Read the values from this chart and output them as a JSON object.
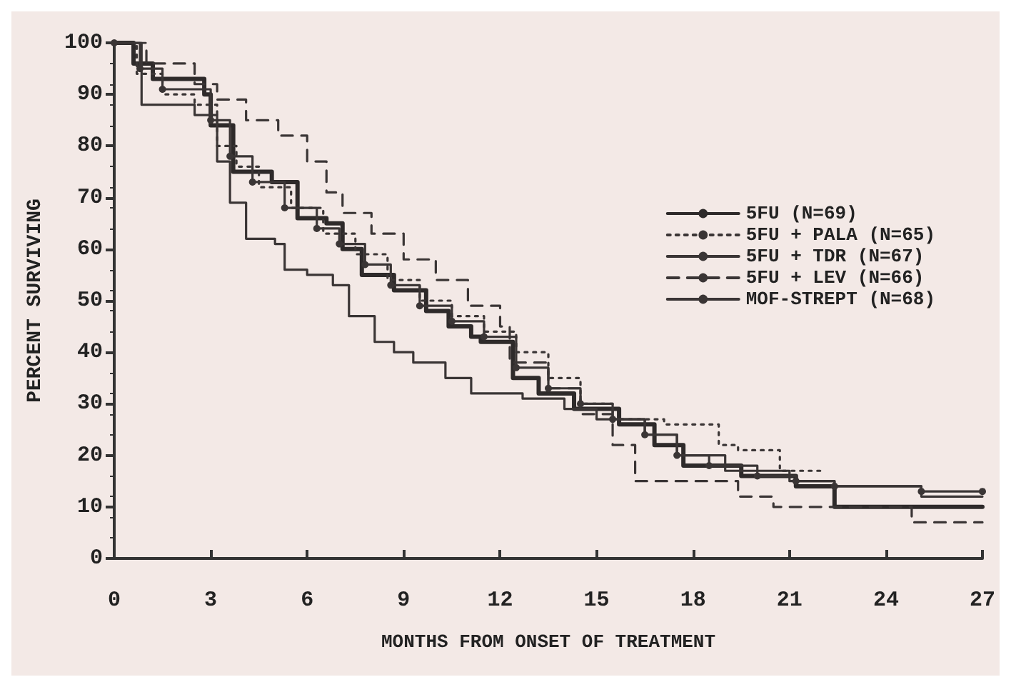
{
  "chart_data": {
    "type": "step",
    "xlabel": "MONTHS FROM ONSET OF TREATMENT",
    "ylabel": "PERCENT SURVIVING",
    "xlim": [
      0,
      27
    ],
    "xticks": [
      0,
      3,
      6,
      9,
      12,
      15,
      18,
      21,
      24,
      27
    ],
    "ylim": [
      0,
      100
    ],
    "yticks": [
      0,
      10,
      20,
      30,
      40,
      50,
      60,
      70,
      80,
      90,
      100
    ],
    "grid": false,
    "legend": "top right",
    "series": [
      {
        "name": "5FU (N=69)",
        "color": "#2e2a2a",
        "line_style": "solid",
        "marker": "none",
        "x": [
          0,
          0.6,
          1.2,
          2.8,
          3.0,
          3.7,
          4.9,
          5.7,
          6.6,
          7.1,
          7.7,
          8.7,
          9.7,
          10.4,
          11.1,
          11.4,
          12.4,
          13.2,
          14.3,
          15.7,
          16.8,
          17.7,
          19.5,
          21.2,
          22.4,
          27
        ],
        "values": [
          100,
          96,
          93,
          90,
          84,
          75,
          73,
          66,
          65,
          60,
          55,
          52,
          48,
          45,
          43,
          42,
          35,
          32,
          29,
          26,
          22,
          18,
          16,
          14,
          10,
          10
        ]
      },
      {
        "name": "5FU + PALA (N=65)",
        "color": "#3a3535",
        "line_style": "dotted",
        "marker": "none",
        "x": [
          0,
          0.7,
          1.5,
          2.5,
          3.2,
          3.8,
          4.5,
          5.5,
          6.5,
          7.5,
          8.5,
          9.5,
          10.5,
          11.5,
          12.5,
          13.5,
          14.5,
          15.5,
          17.1,
          18.8,
          19.4,
          20.7,
          22
        ],
        "values": [
          100,
          94,
          90,
          88,
          80,
          76,
          72,
          68,
          63,
          59,
          54,
          50,
          47,
          44,
          40,
          35,
          30,
          27,
          26,
          22,
          21,
          17,
          17
        ]
      },
      {
        "name": "5FU + TDR (N=67)",
        "color": "#3a3535",
        "line_style": "solid",
        "marker": "circle",
        "x": [
          0,
          0.8,
          1.5,
          3,
          3.6,
          4.3,
          5.3,
          6.3,
          7,
          7.8,
          8.6,
          9.5,
          10.5,
          11.5,
          12.5,
          13.5,
          14.5,
          15.5,
          16.5,
          17.5,
          18.5,
          20,
          21.2,
          22.4,
          25.1,
          27
        ],
        "values": [
          100,
          95,
          91,
          85,
          78,
          73,
          68,
          64,
          61,
          57,
          53,
          49,
          46,
          43,
          37,
          33,
          30,
          27,
          24,
          20,
          18,
          16,
          15,
          14,
          13,
          13
        ]
      },
      {
        "name": "5FU + LEV (N=66)",
        "color": "#3a3535",
        "line_style": "dashed",
        "marker": "none",
        "x": [
          0,
          1,
          2.5,
          3.2,
          4.1,
          5.1,
          6.0,
          6.6,
          7.1,
          8,
          9,
          10,
          11,
          12,
          12.3,
          13.5,
          14.5,
          15.5,
          16.2,
          18,
          19.4,
          20.5,
          24.8,
          27
        ],
        "values": [
          100,
          96,
          92,
          89,
          85,
          82,
          77,
          71,
          67,
          63,
          58,
          54,
          49,
          45,
          38,
          33,
          28,
          22,
          15,
          15,
          12,
          10,
          7,
          7
        ]
      },
      {
        "name": "MOF-STREPT (N=68)",
        "color": "#3a3535",
        "line_style": "solid",
        "marker": "none",
        "x": [
          0,
          0.85,
          2.5,
          3.2,
          3.6,
          4.1,
          5.0,
          5.3,
          6.0,
          6.8,
          7.3,
          8.1,
          8.7,
          9.3,
          10.3,
          11.1,
          12.7,
          14,
          15,
          16.5,
          17.5,
          19,
          21,
          22.4,
          25.1,
          27
        ],
        "values": [
          100,
          88,
          86,
          77,
          69,
          62,
          61,
          56,
          55,
          53,
          47,
          42,
          40,
          38,
          35,
          32,
          31,
          29,
          27,
          24,
          20,
          17,
          15,
          14,
          12,
          12
        ]
      }
    ]
  }
}
